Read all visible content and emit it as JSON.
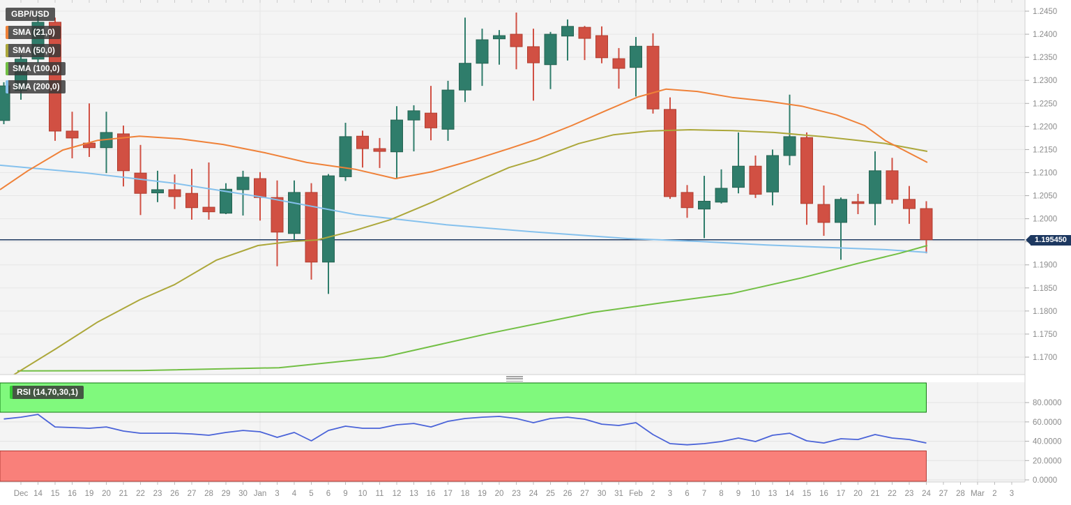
{
  "window_title": "GBP/USD daily candlestick chart with SMAs and RSI",
  "legend": {
    "symbol_label": "GBP/USD",
    "items": [
      {
        "label": "SMA (21,0)",
        "color": "#ef8138"
      },
      {
        "label": "SMA (50,0)",
        "color": "#aca73a"
      },
      {
        "label": "SMA (100,0)",
        "color": "#72bf44"
      },
      {
        "label": "SMA (200,0)",
        "color": "#85c1ed"
      }
    ]
  },
  "rsi": {
    "label": "RSI (14,70,30,1)",
    "line_color": "#4a63d8",
    "overbought_fill": "#80f97d",
    "overbought_border": "#117711",
    "oversold_fill": "#f9807a",
    "oversold_border": "#b23b35"
  },
  "price_axis": {
    "ticks": [
      "1.2450",
      "1.2400",
      "1.2350",
      "1.2300",
      "1.2250",
      "1.2200",
      "1.2150",
      "1.2100",
      "1.2050",
      "1.2000",
      "1.1950",
      "1.1900",
      "1.1850",
      "1.1800",
      "1.1750",
      "1.1700"
    ],
    "current_label": "1.195450"
  },
  "rsi_axis": {
    "ticks": [
      "80.0000",
      "60.0000",
      "40.0000",
      "20.0000",
      "0.0000"
    ]
  },
  "x_axis": {
    "labels": [
      "Dec",
      "14",
      "15",
      "16",
      "19",
      "20",
      "21",
      "22",
      "23",
      "26",
      "27",
      "28",
      "29",
      "30",
      "Jan",
      "3",
      "4",
      "5",
      "6",
      "9",
      "10",
      "11",
      "12",
      "13",
      "16",
      "17",
      "18",
      "19",
      "20",
      "23",
      "24",
      "25",
      "26",
      "27",
      "30",
      "31",
      "Feb",
      "2",
      "3",
      "6",
      "7",
      "8",
      "9",
      "10",
      "13",
      "14",
      "15",
      "16",
      "17",
      "20",
      "21",
      "22",
      "23",
      "24",
      "27",
      "28",
      "Mar",
      "2",
      "3"
    ],
    "month_grid_indices": [
      14,
      36,
      56
    ]
  },
  "colors": {
    "up_candle": "#2f7d6b",
    "up_candle_border": "#256352",
    "down_candle": "#d15043",
    "down_candle_border": "#b03d2f",
    "price_line": "#1d3860",
    "panel_bg": "#f4f4f4",
    "grid": "#e6e6e6",
    "axis_text": "#8b8b8b",
    "border": "#cfcfcf"
  },
  "chart_data": {
    "type": "candlestick",
    "title": "GBP/USD",
    "current_price": 1.19545,
    "price_range": {
      "top_tick": 1.245,
      "bottom_tick": 1.17
    },
    "rsi_range": {
      "overbought": 70,
      "oversold": 30,
      "max": 100,
      "min": 0
    },
    "candles": [
      {
        "date": "",
        "o": 1.2213,
        "h": 1.2296,
        "l": 1.2205,
        "c": 1.2288,
        "rsi": 63.0
      },
      {
        "date": "Dec",
        "o": 1.2278,
        "h": 1.2355,
        "l": 1.2258,
        "c": 1.2346,
        "rsi": 64.9
      },
      {
        "date": "14",
        "o": 1.2346,
        "h": 1.2446,
        "l": 1.2338,
        "c": 1.2426,
        "rsi": 67.8
      },
      {
        "date": "15",
        "o": 1.2426,
        "h": 1.2436,
        "l": 1.2169,
        "c": 1.219,
        "rsi": 54.8
      },
      {
        "date": "16",
        "o": 1.219,
        "h": 1.2232,
        "l": 1.2131,
        "c": 1.2175,
        "rsi": 54.1
      },
      {
        "date": "19",
        "o": 1.2164,
        "h": 1.225,
        "l": 1.2134,
        "c": 1.2154,
        "rsi": 53.4
      },
      {
        "date": "20",
        "o": 1.2154,
        "h": 1.2232,
        "l": 1.2099,
        "c": 1.2187,
        "rsi": 54.8
      },
      {
        "date": "21",
        "o": 1.2184,
        "h": 1.2202,
        "l": 1.207,
        "c": 1.2104,
        "rsi": 50.5
      },
      {
        "date": "22",
        "o": 1.2099,
        "h": 1.216,
        "l": 1.2008,
        "c": 1.2055,
        "rsi": 48.3
      },
      {
        "date": "23",
        "o": 1.2056,
        "h": 1.2104,
        "l": 1.2036,
        "c": 1.2063,
        "rsi": 48.3
      },
      {
        "date": "26",
        "o": 1.2063,
        "h": 1.2096,
        "l": 1.2021,
        "c": 1.2048,
        "rsi": 48.3
      },
      {
        "date": "27",
        "o": 1.2055,
        "h": 1.2108,
        "l": 1.1998,
        "c": 1.2024,
        "rsi": 47.6
      },
      {
        "date": "28",
        "o": 1.2025,
        "h": 1.2122,
        "l": 1.1998,
        "c": 1.2015,
        "rsi": 46.2
      },
      {
        "date": "29",
        "o": 1.2012,
        "h": 1.2077,
        "l": 1.201,
        "c": 1.2064,
        "rsi": 49.1
      },
      {
        "date": "30",
        "o": 1.2063,
        "h": 1.2104,
        "l": 1.2007,
        "c": 1.209,
        "rsi": 51.2
      },
      {
        "date": "Jan",
        "o": 1.2087,
        "h": 1.2101,
        "l": 1.1996,
        "c": 1.2046,
        "rsi": 49.8
      },
      {
        "date": "3",
        "o": 1.2046,
        "h": 1.2083,
        "l": 1.1897,
        "c": 1.1971,
        "rsi": 44.0
      },
      {
        "date": "4",
        "o": 1.1968,
        "h": 1.2083,
        "l": 1.1955,
        "c": 1.2057,
        "rsi": 49.1
      },
      {
        "date": "5",
        "o": 1.2057,
        "h": 1.2077,
        "l": 1.1868,
        "c": 1.1906,
        "rsi": 40.4
      },
      {
        "date": "6",
        "o": 1.1906,
        "h": 1.2097,
        "l": 1.1837,
        "c": 1.2093,
        "rsi": 51.2
      },
      {
        "date": "9",
        "o": 1.2091,
        "h": 1.2208,
        "l": 1.2082,
        "c": 1.2178,
        "rsi": 55.6
      },
      {
        "date": "10",
        "o": 1.2179,
        "h": 1.2191,
        "l": 1.2111,
        "c": 1.2152,
        "rsi": 53.4
      },
      {
        "date": "11",
        "o": 1.2152,
        "h": 1.2175,
        "l": 1.211,
        "c": 1.2146,
        "rsi": 53.4
      },
      {
        "date": "12",
        "o": 1.2145,
        "h": 1.2244,
        "l": 1.2086,
        "c": 1.2214,
        "rsi": 57.0
      },
      {
        "date": "13",
        "o": 1.2214,
        "h": 1.2246,
        "l": 1.2146,
        "c": 1.2234,
        "rsi": 58.4
      },
      {
        "date": "16",
        "o": 1.2229,
        "h": 1.2288,
        "l": 1.217,
        "c": 1.2197,
        "rsi": 54.8
      },
      {
        "date": "17",
        "o": 1.2194,
        "h": 1.2299,
        "l": 1.2169,
        "c": 1.2279,
        "rsi": 60.6
      },
      {
        "date": "18",
        "o": 1.2279,
        "h": 1.2436,
        "l": 1.2253,
        "c": 1.2337,
        "rsi": 63.5
      },
      {
        "date": "19",
        "o": 1.2337,
        "h": 1.2412,
        "l": 1.2288,
        "c": 1.2388,
        "rsi": 64.9
      },
      {
        "date": "20",
        "o": 1.239,
        "h": 1.2409,
        "l": 1.2334,
        "c": 1.2397,
        "rsi": 65.7
      },
      {
        "date": "23",
        "o": 1.24,
        "h": 1.2447,
        "l": 1.2324,
        "c": 1.2373,
        "rsi": 63.5
      },
      {
        "date": "24",
        "o": 1.2373,
        "h": 1.2412,
        "l": 1.2256,
        "c": 1.2338,
        "rsi": 59.2
      },
      {
        "date": "25",
        "o": 1.2334,
        "h": 1.2405,
        "l": 1.2281,
        "c": 1.24,
        "rsi": 63.5
      },
      {
        "date": "26",
        "o": 1.2396,
        "h": 1.2432,
        "l": 1.2343,
        "c": 1.2417,
        "rsi": 64.9
      },
      {
        "date": "27",
        "o": 1.2415,
        "h": 1.2418,
        "l": 1.2344,
        "c": 1.2391,
        "rsi": 62.8
      },
      {
        "date": "30",
        "o": 1.2397,
        "h": 1.2417,
        "l": 1.2337,
        "c": 1.2349,
        "rsi": 57.7
      },
      {
        "date": "31",
        "o": 1.2347,
        "h": 1.237,
        "l": 1.2282,
        "c": 1.2326,
        "rsi": 56.3
      },
      {
        "date": "Feb",
        "o": 1.2328,
        "h": 1.2394,
        "l": 1.2265,
        "c": 1.2374,
        "rsi": 59.2
      },
      {
        "date": "2",
        "o": 1.2374,
        "h": 1.2402,
        "l": 1.2228,
        "c": 1.2238,
        "rsi": 46.9
      },
      {
        "date": "3",
        "o": 1.2237,
        "h": 1.2263,
        "l": 1.2043,
        "c": 1.2048,
        "rsi": 37.5
      },
      {
        "date": "6",
        "o": 1.2057,
        "h": 1.2073,
        "l": 1.2002,
        "c": 1.2024,
        "rsi": 36.3
      },
      {
        "date": "7",
        "o": 1.2021,
        "h": 1.2093,
        "l": 1.1958,
        "c": 1.2038,
        "rsi": 37.5
      },
      {
        "date": "8",
        "o": 1.2036,
        "h": 1.2107,
        "l": 1.2033,
        "c": 1.2066,
        "rsi": 39.7
      },
      {
        "date": "9",
        "o": 1.2068,
        "h": 1.2187,
        "l": 1.2055,
        "c": 1.2114,
        "rsi": 43.3
      },
      {
        "date": "10",
        "o": 1.2114,
        "h": 1.2137,
        "l": 1.2045,
        "c": 1.2053,
        "rsi": 39.7
      },
      {
        "date": "13",
        "o": 1.2058,
        "h": 1.215,
        "l": 1.2029,
        "c": 1.2137,
        "rsi": 46.2
      },
      {
        "date": "14",
        "o": 1.2137,
        "h": 1.2269,
        "l": 1.2116,
        "c": 1.2178,
        "rsi": 48.3
      },
      {
        "date": "15",
        "o": 1.2176,
        "h": 1.2187,
        "l": 1.1987,
        "c": 1.2033,
        "rsi": 40.4
      },
      {
        "date": "16",
        "o": 1.2031,
        "h": 1.2072,
        "l": 1.1963,
        "c": 1.1992,
        "rsi": 38.2
      },
      {
        "date": "17",
        "o": 1.1992,
        "h": 1.2046,
        "l": 1.1911,
        "c": 1.2042,
        "rsi": 42.6
      },
      {
        "date": "20",
        "o": 1.2037,
        "h": 1.2054,
        "l": 1.201,
        "c": 1.2033,
        "rsi": 41.8
      },
      {
        "date": "21",
        "o": 1.2033,
        "h": 1.2146,
        "l": 1.1986,
        "c": 1.2104,
        "rsi": 46.9
      },
      {
        "date": "22",
        "o": 1.2104,
        "h": 1.2132,
        "l": 1.2033,
        "c": 1.2042,
        "rsi": 43.3
      },
      {
        "date": "23",
        "o": 1.2042,
        "h": 1.2071,
        "l": 1.1989,
        "c": 1.2022,
        "rsi": 41.8
      },
      {
        "date": "24",
        "o": 1.2022,
        "h": 1.2038,
        "l": 1.1925,
        "c": 1.19545,
        "rsi": 38.2
      }
    ],
    "sma21": [
      [
        0,
        1.2063
      ],
      [
        40,
        1.2104
      ],
      [
        90,
        1.2149
      ],
      [
        140,
        1.217
      ],
      [
        200,
        1.2179
      ],
      [
        260,
        1.2173
      ],
      [
        320,
        1.2161
      ],
      [
        380,
        1.2143
      ],
      [
        440,
        1.2122
      ],
      [
        510,
        1.2107
      ],
      [
        567,
        1.2087
      ],
      [
        620,
        1.2102
      ],
      [
        680,
        1.2128
      ],
      [
        730,
        1.2152
      ],
      [
        770,
        1.2172
      ],
      [
        820,
        1.2202
      ],
      [
        870,
        1.2235
      ],
      [
        915,
        1.2264
      ],
      [
        955,
        1.2281
      ],
      [
        1000,
        1.2276
      ],
      [
        1050,
        1.2263
      ],
      [
        1100,
        1.2255
      ],
      [
        1150,
        1.2244
      ],
      [
        1200,
        1.2225
      ],
      [
        1240,
        1.2202
      ],
      [
        1270,
        1.2169
      ],
      [
        1330,
        1.2122
      ]
    ],
    "sma50": [
      [
        20,
        1.1662
      ],
      [
        80,
        1.1718
      ],
      [
        140,
        1.1776
      ],
      [
        200,
        1.1824
      ],
      [
        250,
        1.1857
      ],
      [
        310,
        1.191
      ],
      [
        370,
        1.1942
      ],
      [
        420,
        1.1951
      ],
      [
        455,
        1.1954
      ],
      [
        510,
        1.1975
      ],
      [
        560,
        1.1998
      ],
      [
        620,
        1.2036
      ],
      [
        680,
        1.2078
      ],
      [
        730,
        1.2111
      ],
      [
        770,
        1.2129
      ],
      [
        830,
        1.2163
      ],
      [
        880,
        1.2182
      ],
      [
        930,
        1.219
      ],
      [
        990,
        1.2193
      ],
      [
        1050,
        1.2191
      ],
      [
        1110,
        1.2187
      ],
      [
        1180,
        1.2178
      ],
      [
        1230,
        1.217
      ],
      [
        1270,
        1.2163
      ],
      [
        1330,
        1.2146
      ]
    ],
    "sma100": [
      [
        25,
        1.167
      ],
      [
        200,
        1.1671
      ],
      [
        400,
        1.1677
      ],
      [
        550,
        1.17
      ],
      [
        700,
        1.1751
      ],
      [
        850,
        1.1797
      ],
      [
        950,
        1.1818
      ],
      [
        1050,
        1.1838
      ],
      [
        1150,
        1.1872
      ],
      [
        1230,
        1.1903
      ],
      [
        1290,
        1.1925
      ],
      [
        1330,
        1.1942
      ]
    ],
    "sma200": [
      [
        0,
        1.2116
      ],
      [
        125,
        1.2099
      ],
      [
        250,
        1.2077
      ],
      [
        380,
        1.2046
      ],
      [
        510,
        1.2009
      ],
      [
        640,
        1.1987
      ],
      [
        770,
        1.1971
      ],
      [
        900,
        1.1957
      ],
      [
        1000,
        1.1951
      ],
      [
        1100,
        1.1943
      ],
      [
        1200,
        1.1937
      ],
      [
        1270,
        1.1933
      ],
      [
        1330,
        1.1927
      ]
    ]
  }
}
